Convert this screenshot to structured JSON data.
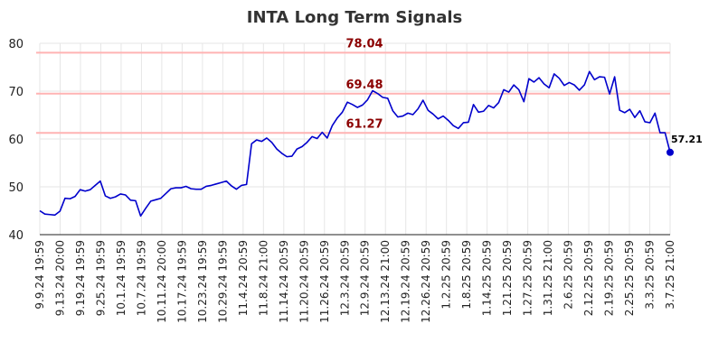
{
  "chart_data": {
    "type": "line",
    "title": "INTA Long Term Signals",
    "xlabel": "",
    "ylabel": "",
    "ylim": [
      40,
      80
    ],
    "yticks": [
      40,
      50,
      60,
      70,
      80
    ],
    "grid": true,
    "legend": "none",
    "colors": {
      "line": "#0000cc",
      "level_line": "#ffb3b3",
      "level_label": "#8b0000",
      "grid": "#e6e6e6"
    },
    "x_tick_labels": [
      "9.9.24 19:59",
      "9.13.24 20:00",
      "9.19.24 19:59",
      "9.25.24 19:59",
      "10.1.24 19:59",
      "10.7.24 19:59",
      "10.11.24 20:00",
      "10.17.24 19:59",
      "10.23.24 19:59",
      "10.29.24 19:59",
      "11.4.24 20:59",
      "11.8.24 21:00",
      "11.14.24 20:59",
      "11.20.24 20:59",
      "11.26.24 20:59",
      "12.3.24 20:59",
      "12.9.24 20:59",
      "12.13.24 21:00",
      "12.19.24 20:59",
      "12.26.24 20:59",
      "1.2.25 20:59",
      "1.8.25 20:59",
      "1.14.25 20:59",
      "1.21.25 20:59",
      "1.27.25 20:59",
      "1.31.25 21:00",
      "2.6.25 20:59",
      "2.12.25 20:59",
      "2.19.25 20:59",
      "2.25.25 20:59",
      "3.3.25 20:59",
      "3.7.25 21:00"
    ],
    "levels": [
      {
        "value": 78.04,
        "label": "78.04"
      },
      {
        "value": 69.48,
        "label": "69.48"
      },
      {
        "value": 61.27,
        "label": "61.27"
      }
    ],
    "last_label": "57.21",
    "series": [
      {
        "values": [
          45.0,
          44.3,
          44.2,
          44.1,
          44.9,
          47.6,
          47.5,
          48.0,
          49.4,
          49.1,
          49.4,
          50.3,
          51.2,
          48.1,
          47.6,
          47.9,
          48.5,
          48.3,
          47.2,
          47.1,
          43.9,
          45.5,
          47.0,
          47.3,
          47.6,
          48.6,
          49.6,
          49.8,
          49.8,
          50.1,
          49.6,
          49.5,
          49.5,
          50.1,
          50.3,
          50.6,
          50.9,
          51.2,
          50.2,
          49.5,
          50.3,
          50.5,
          59.0,
          59.8,
          59.5,
          60.2,
          59.3,
          57.9,
          57.0,
          56.3,
          56.4,
          57.9,
          58.4,
          59.3,
          60.5,
          60.1,
          61.4,
          60.2,
          62.8,
          64.4,
          65.6,
          67.7,
          67.2,
          66.6,
          67.1,
          68.2,
          70.1,
          69.5,
          68.7,
          68.5,
          65.9,
          64.6,
          64.8,
          65.4,
          65.1,
          66.3,
          68.1,
          66.0,
          65.2,
          64.2,
          64.8,
          63.9,
          62.8,
          62.2,
          63.4,
          63.5,
          67.2,
          65.6,
          65.8,
          67.0,
          66.5,
          67.6,
          70.3,
          69.8,
          71.3,
          70.3,
          67.8,
          72.6,
          71.9,
          72.8,
          71.5,
          70.7,
          73.6,
          72.7,
          71.2,
          71.8,
          71.3,
          70.2,
          71.3,
          74.1,
          72.4,
          73.0,
          72.9,
          69.4,
          73.0,
          66.0,
          65.5,
          66.2,
          64.5,
          65.9,
          63.6,
          63.4,
          65.4,
          61.3,
          61.3,
          57.21
        ]
      }
    ]
  }
}
